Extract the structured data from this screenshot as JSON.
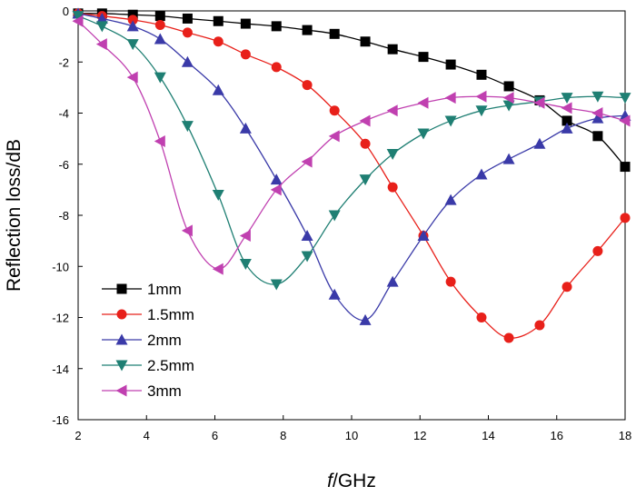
{
  "chart_data": {
    "type": "line",
    "xlabel_italic": "f",
    "xlabel_rest": "/GHz",
    "ylabel": "Reflection loss/dB",
    "xlim": [
      2,
      18
    ],
    "ylim": [
      -16,
      0
    ],
    "xticks": [
      "2",
      "4",
      "6",
      "8",
      "10",
      "12",
      "14",
      "16",
      "18"
    ],
    "yticks": [
      "0",
      "-2",
      "-4",
      "-6",
      "-8",
      "-10",
      "-12",
      "-14",
      "-16"
    ],
    "grid": false,
    "legend_position": "bottom-left",
    "series": [
      {
        "name": "1mm",
        "color": "#000000",
        "marker": "square",
        "x": [
          2,
          2.7,
          3.6,
          4.4,
          5.2,
          6.1,
          6.9,
          7.8,
          8.7,
          9.5,
          10.4,
          11.2,
          12.1,
          12.9,
          13.8,
          14.6,
          15.5,
          16.3,
          17.2,
          18
        ],
        "y": [
          -0.1,
          -0.1,
          -0.15,
          -0.2,
          -0.3,
          -0.4,
          -0.5,
          -0.6,
          -0.75,
          -0.9,
          -1.2,
          -1.5,
          -1.8,
          -2.1,
          -2.5,
          -2.95,
          -3.5,
          -4.3,
          -4.9,
          -6.1
        ]
      },
      {
        "name": "1.5mm",
        "color": "#e8201a",
        "marker": "circle",
        "x": [
          2,
          2.7,
          3.6,
          4.4,
          5.2,
          6.1,
          6.9,
          7.8,
          8.7,
          9.5,
          10.4,
          11.2,
          12.1,
          12.9,
          13.8,
          14.6,
          15.5,
          16.3,
          17.2,
          18
        ],
        "y": [
          -0.1,
          -0.2,
          -0.35,
          -0.55,
          -0.85,
          -1.2,
          -1.7,
          -2.2,
          -2.9,
          -3.9,
          -5.2,
          -6.9,
          -8.8,
          -10.6,
          -12.0,
          -12.8,
          -12.3,
          -10.8,
          -9.4,
          -8.1
        ]
      },
      {
        "name": "2mm",
        "color": "#3a3aa8",
        "marker": "triangle-up",
        "x": [
          2,
          2.7,
          3.6,
          4.4,
          5.2,
          6.1,
          6.9,
          7.8,
          8.7,
          9.5,
          10.4,
          11.2,
          12.1,
          12.9,
          13.8,
          14.6,
          15.5,
          16.3,
          17.2,
          18
        ],
        "y": [
          -0.1,
          -0.3,
          -0.6,
          -1.1,
          -2.0,
          -3.1,
          -4.6,
          -6.6,
          -8.8,
          -11.1,
          -12.1,
          -10.6,
          -8.8,
          -7.4,
          -6.4,
          -5.8,
          -5.2,
          -4.6,
          -4.2,
          -4.1
        ]
      },
      {
        "name": "2.5mm",
        "color": "#1f7f73",
        "marker": "triangle-down",
        "x": [
          2,
          2.7,
          3.6,
          4.4,
          5.2,
          6.1,
          6.9,
          7.8,
          8.7,
          9.5,
          10.4,
          11.2,
          12.1,
          12.9,
          13.8,
          14.6,
          15.5,
          16.3,
          17.2,
          18
        ],
        "y": [
          -0.2,
          -0.6,
          -1.3,
          -2.6,
          -4.5,
          -7.2,
          -9.9,
          -10.7,
          -9.6,
          -8.0,
          -6.6,
          -5.6,
          -4.8,
          -4.3,
          -3.9,
          -3.7,
          -3.55,
          -3.4,
          -3.35,
          -3.4
        ]
      },
      {
        "name": "3mm",
        "color": "#c040b0",
        "marker": "triangle-left",
        "x": [
          2,
          2.7,
          3.6,
          4.4,
          5.2,
          6.1,
          6.9,
          7.8,
          8.7,
          9.5,
          10.4,
          11.2,
          12.1,
          12.9,
          13.8,
          14.6,
          15.5,
          16.3,
          17.2,
          18
        ],
        "y": [
          -0.4,
          -1.3,
          -2.6,
          -5.1,
          -8.6,
          -10.1,
          -8.8,
          -7.0,
          -5.9,
          -4.9,
          -4.3,
          -3.9,
          -3.6,
          -3.4,
          -3.35,
          -3.4,
          -3.6,
          -3.8,
          -4.0,
          -4.3
        ]
      }
    ]
  }
}
